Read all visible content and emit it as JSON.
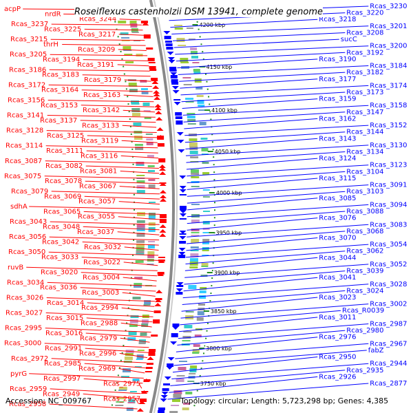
{
  "title": "Roseiflexus castenholzii DSM 13941, complete genome",
  "footer": {
    "accession": "Accession: NC_009767",
    "summary": "Topology: circular; Length: 5,723,298 bp; Genes: 4,385"
  },
  "colors": {
    "forward": "#ff0000",
    "reverse": "#0000ff",
    "rna": "#33ccff",
    "backbone": "#888888",
    "tick": "#228b22"
  },
  "kbp_marks": [
    "4200 kbp",
    "4150 kbp",
    "4100 kbp",
    "4050 kbp",
    "4000 kbp",
    "3950 kbp",
    "3900 kbp",
    "3850 kbp",
    "3800 kbp",
    "3750 kbp"
  ],
  "left_labels": [
    "acpP",
    "nrdR",
    "Rcas_3244",
    "Rcas_3237",
    "Rcas_3225",
    "Rcas_3217",
    "Rcas_3215",
    "thrH",
    "Rcas_3209",
    "Rcas_3205",
    "Rcas_3194",
    "Rcas_3191",
    "Rcas_3186",
    "Rcas_3183",
    "Rcas_3179",
    "Rcas_3172",
    "Rcas_3164",
    "Rcas_3163",
    "Rcas_3156",
    "Rcas_3153",
    "Rcas_3142",
    "Rcas_3141",
    "Rcas_3137",
    "Rcas_3133",
    "Rcas_3128",
    "Rcas_3125",
    "Rcas_3119",
    "Rcas_3114",
    "Rcas_3111",
    "Rcas_3116",
    "Rcas_3087",
    "Rcas_3082",
    "Rcas_3081",
    "Rcas_3075",
    "Rcas_3078",
    "Rcas_3067",
    "Rcas_3079",
    "Rcas_3069",
    "Rcas_3057",
    "sdhA",
    "Rcas_3065",
    "Rcas_3055",
    "Rcas_3043",
    "Rcas_3048",
    "Rcas_3037",
    "Rcas_3056",
    "Rcas_3042",
    "Rcas_3032",
    "Rcas_3050",
    "Rcas_3033",
    "Rcas_3022",
    "ruvB",
    "Rcas_3020",
    "Rcas_3004",
    "Rcas_3034",
    "Rcas_3036",
    "Rcas_3003",
    "Rcas_3026",
    "Rcas_3014",
    "Rcas_2994",
    "Rcas_3027",
    "Rcas_3015",
    "Rcas_2988",
    "Rcas_2995",
    "Rcas_3016",
    "Rcas_2979",
    "Rcas_3000",
    "Rcas_2991",
    "Rcas_2996",
    "Rcas_2972",
    "Rcas_2985",
    "Rcas_2969",
    "pyrG",
    "Rcas_2997",
    "Rcas_2975",
    "Rcas_2959",
    "Rcas_2949",
    "Rcas_2957",
    "Rcas_2958"
  ],
  "right_labels": [
    "Rcas_3230",
    "Rcas_3220",
    "Rcas_3218",
    "Rcas_3201",
    "Rcas_3208",
    "sucC",
    "Rcas_3200",
    "Rcas_3192",
    "Rcas_3190",
    "Rcas_3184",
    "Rcas_3182",
    "Rcas_3177",
    "Rcas_3174",
    "Rcas_3173",
    "Rcas_3159",
    "Rcas_3158",
    "Rcas_3147",
    "Rcas_3162",
    "Rcas_3152",
    "Rcas_3144",
    "Rcas_3143",
    "Rcas_3130",
    "Rcas_3134",
    "Rcas_3124",
    "Rcas_3123",
    "Rcas_3104",
    "Rcas_3115",
    "Rcas_3091",
    "Rcas_3103",
    "Rcas_3085",
    "Rcas_3094",
    "Rcas_3088",
    "Rcas_3076",
    "Rcas_3083",
    "Rcas_3068",
    "Rcas_3070",
    "Rcas_3054",
    "Rcas_3062",
    "Rcas_3044",
    "Rcas_3052",
    "Rcas_3039",
    "Rcas_3041",
    "Rcas_3028",
    "Rcas_3024",
    "Rcas_3023",
    "Rcas_3002",
    "Rcas_R0039",
    "Rcas_3011",
    "Rcas_2987",
    "Rcas_2980",
    "Rcas_2976",
    "Rcas_2967",
    "fabZ",
    "Rcas_2950",
    "Rcas_2944",
    "Rcas_2935",
    "Rcas_2926",
    "Rcas_2877"
  ]
}
